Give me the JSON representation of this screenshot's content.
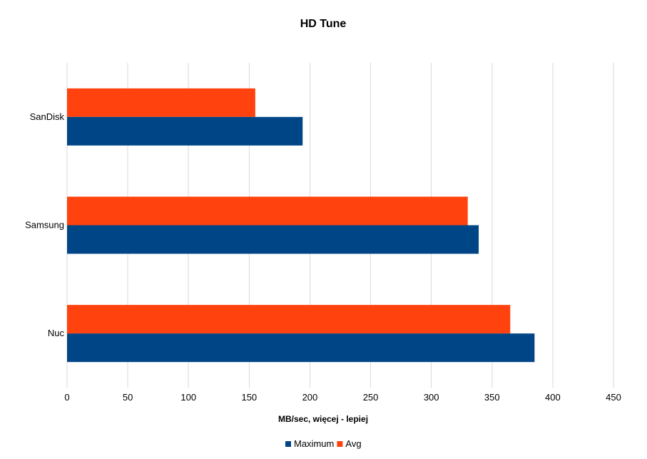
{
  "chart_data": {
    "type": "bar",
    "orientation": "horizontal",
    "title": "HD Tune",
    "xlabel": "MB/sec, więcej - lepiej",
    "ylabel": "",
    "categories": [
      "SanDisk",
      "Samsung",
      "Nuc"
    ],
    "series": [
      {
        "name": "Maximum",
        "color": "#004586",
        "values": [
          194,
          339,
          385
        ]
      },
      {
        "name": "Avg",
        "color": "#ff420e",
        "values": [
          155,
          330,
          365
        ]
      }
    ],
    "xlim": [
      0,
      450
    ],
    "xticks": [
      0,
      50,
      100,
      150,
      200,
      250,
      300,
      350,
      400,
      450
    ],
    "grid": true,
    "legend_position": "bottom"
  }
}
